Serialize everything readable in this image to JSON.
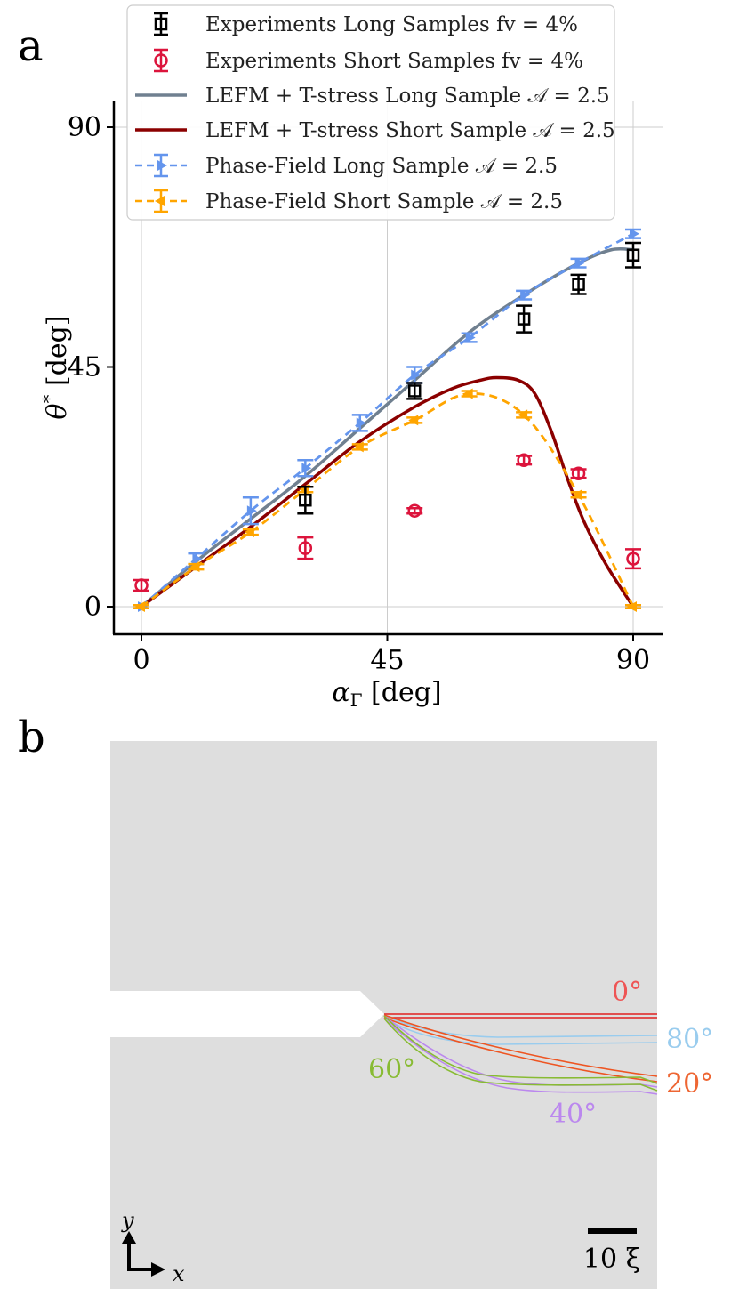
{
  "figure": {
    "panel_a_letter": "a",
    "panel_b_letter": "b"
  },
  "chart_data": [
    {
      "type": "scatter",
      "panel": "a",
      "xlabel": "αΓ [deg]",
      "ylabel": "θ* [deg]",
      "xlim": [
        -5,
        94
      ],
      "ylim": [
        -5,
        95
      ],
      "xticks": [
        0,
        45,
        90
      ],
      "yticks": [
        0,
        45,
        90
      ],
      "tick_labels_x": [
        "0",
        "45",
        "90"
      ],
      "tick_labels_y": [
        "0",
        "45",
        "90"
      ],
      "grid": true,
      "legend_position": "top",
      "series": [
        {
          "name": "Experiments Long Samples fv = 4%",
          "kind": "errorbar-square",
          "color": "#000000",
          "points": [
            {
              "x": 30,
              "y": 20.0,
              "err": 2.5
            },
            {
              "x": 50,
              "y": 40.5,
              "err": 1.5
            },
            {
              "x": 70,
              "y": 54.0,
              "err": 2.5
            },
            {
              "x": 80,
              "y": 60.5,
              "err": 1.8
            },
            {
              "x": 90,
              "y": 66.0,
              "err": 2.3
            }
          ]
        },
        {
          "name": "Experiments Short Samples fv = 4%",
          "kind": "errorbar-circle",
          "color": "#dc143c",
          "points": [
            {
              "x": 0,
              "y": 4.0,
              "err": 1.0
            },
            {
              "x": 30,
              "y": 11.0,
              "err": 2.0
            },
            {
              "x": 50,
              "y": 18.0,
              "err": 0.5
            },
            {
              "x": 70,
              "y": 27.5,
              "err": 0.8
            },
            {
              "x": 80,
              "y": 25.0,
              "err": 0.8
            },
            {
              "x": 90,
              "y": 9.0,
              "err": 1.8
            }
          ]
        },
        {
          "name": "LEFM + T-stress Long Sample 𝒜 = 2.5",
          "kind": "line",
          "color": "#708090",
          "points": [
            {
              "x": 0,
              "y": 0
            },
            {
              "x": 10,
              "y": 8.5
            },
            {
              "x": 20,
              "y": 16.5
            },
            {
              "x": 30,
              "y": 24.5
            },
            {
              "x": 40,
              "y": 33.5
            },
            {
              "x": 50,
              "y": 42.5
            },
            {
              "x": 60,
              "y": 51.5
            },
            {
              "x": 70,
              "y": 58.5
            },
            {
              "x": 80,
              "y": 64.5
            },
            {
              "x": 86,
              "y": 67.0
            },
            {
              "x": 90,
              "y": 67.0
            }
          ]
        },
        {
          "name": "LEFM + T-stress Short Sample 𝒜 = 2.5",
          "kind": "line",
          "color": "#8b0000",
          "points": [
            {
              "x": 0,
              "y": 0
            },
            {
              "x": 10,
              "y": 7.5
            },
            {
              "x": 20,
              "y": 15.0
            },
            {
              "x": 30,
              "y": 23.0
            },
            {
              "x": 40,
              "y": 31.0
            },
            {
              "x": 50,
              "y": 37.5
            },
            {
              "x": 57,
              "y": 41.0
            },
            {
              "x": 62,
              "y": 42.5
            },
            {
              "x": 65,
              "y": 43.0
            },
            {
              "x": 69,
              "y": 42.5
            },
            {
              "x": 72,
              "y": 40.0
            },
            {
              "x": 75,
              "y": 33.0
            },
            {
              "x": 78,
              "y": 24.0
            },
            {
              "x": 81,
              "y": 16.0
            },
            {
              "x": 85,
              "y": 8.0
            },
            {
              "x": 90,
              "y": 0
            }
          ]
        },
        {
          "name": "Phase-Field Long Sample 𝒜 = 2.5",
          "kind": "dashed-errorbar",
          "color": "#6495ed",
          "points": [
            {
              "x": 0,
              "y": 0,
              "err": 0.3
            },
            {
              "x": 10,
              "y": 9.0,
              "err": 1.0
            },
            {
              "x": 20,
              "y": 18.0,
              "err": 2.5
            },
            {
              "x": 30,
              "y": 26.0,
              "err": 1.5
            },
            {
              "x": 40,
              "y": 34.5,
              "err": 1.5
            },
            {
              "x": 50,
              "y": 43.5,
              "err": 1.5
            },
            {
              "x": 60,
              "y": 50.5,
              "err": 0.8
            },
            {
              "x": 70,
              "y": 58.5,
              "err": 0.8
            },
            {
              "x": 80,
              "y": 64.5,
              "err": 0.8
            },
            {
              "x": 90,
              "y": 70.0,
              "err": 0.8
            }
          ]
        },
        {
          "name": "Phase-Field Short Sample 𝒜 = 2.5",
          "kind": "dashed-errorbar",
          "color": "#ffa500",
          "points": [
            {
              "x": 0,
              "y": 0,
              "err": 0.3
            },
            {
              "x": 10,
              "y": 7.5,
              "err": 0.5
            },
            {
              "x": 20,
              "y": 14.0,
              "err": 0.5
            },
            {
              "x": 30,
              "y": 22.0,
              "err": 0.5
            },
            {
              "x": 40,
              "y": 30.0,
              "err": 0.5
            },
            {
              "x": 50,
              "y": 35.0,
              "err": 0.5
            },
            {
              "x": 60,
              "y": 40.0,
              "err": 0.5
            },
            {
              "x": 70,
              "y": 36.0,
              "err": 0.5
            },
            {
              "x": 80,
              "y": 21.0,
              "err": 0.5
            },
            {
              "x": 90,
              "y": 0,
              "err": 0.3
            }
          ]
        }
      ]
    },
    {
      "type": "diagram",
      "panel": "b",
      "background_color": "#dedede",
      "crack_labels": [
        {
          "text": "0°",
          "color": "#ee5555"
        },
        {
          "text": "80°",
          "color": "#99ccee"
        },
        {
          "text": "60°",
          "color": "#88bb33"
        },
        {
          "text": "20°",
          "color": "#ee6633"
        },
        {
          "text": "40°",
          "color": "#bb88ee"
        }
      ],
      "scale_bar_label": "10 ξ",
      "axis_labels": {
        "x": "x",
        "y": "y"
      }
    }
  ]
}
